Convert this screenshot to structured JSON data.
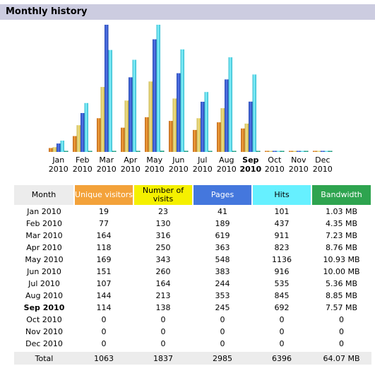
{
  "title": "Monthly history",
  "colors": {
    "visitors": "#f3a23a",
    "visits": "#f5f000",
    "pages": "#4477dd",
    "hits": "#66f0ff",
    "bandwidth": "#2ea44f",
    "month_header": "#ececec",
    "title_bar": "#cccce0"
  },
  "table": {
    "headers": [
      "Month",
      "Unique visitors",
      "Number of visits",
      "Pages",
      "Hits",
      "Bandwidth"
    ],
    "rows": [
      [
        "Jan 2010",
        "19",
        "23",
        "41",
        "101",
        "1.03 MB"
      ],
      [
        "Feb 2010",
        "77",
        "130",
        "189",
        "437",
        "4.35 MB"
      ],
      [
        "Mar 2010",
        "164",
        "316",
        "619",
        "911",
        "7.23 MB"
      ],
      [
        "Apr 2010",
        "118",
        "250",
        "363",
        "823",
        "8.76 MB"
      ],
      [
        "May 2010",
        "169",
        "343",
        "548",
        "1136",
        "10.93 MB"
      ],
      [
        "Jun 2010",
        "151",
        "260",
        "383",
        "916",
        "10.00 MB"
      ],
      [
        "Jul 2010",
        "107",
        "164",
        "244",
        "535",
        "5.36 MB"
      ],
      [
        "Aug 2010",
        "144",
        "213",
        "353",
        "845",
        "8.85 MB"
      ],
      [
        "Sep 2010",
        "114",
        "138",
        "245",
        "692",
        "7.57 MB"
      ],
      [
        "Oct 2010",
        "0",
        "0",
        "0",
        "0",
        "0"
      ],
      [
        "Nov 2010",
        "0",
        "0",
        "0",
        "0",
        "0"
      ],
      [
        "Dec 2010",
        "0",
        "0",
        "0",
        "0",
        "0"
      ]
    ],
    "current_month": "Sep 2010",
    "total": [
      "Total",
      "1063",
      "1837",
      "2985",
      "6396",
      "64.07 MB"
    ]
  },
  "chart_data": {
    "type": "bar",
    "categories": [
      [
        "Jan",
        "2010"
      ],
      [
        "Feb",
        "2010"
      ],
      [
        "Mar",
        "2010"
      ],
      [
        "Apr",
        "2010"
      ],
      [
        "May",
        "2010"
      ],
      [
        "Jun",
        "2010"
      ],
      [
        "Jul",
        "2010"
      ],
      [
        "Aug",
        "2010"
      ],
      [
        "Sep",
        "2010"
      ],
      [
        "Oct",
        "2010"
      ],
      [
        "Nov",
        "2010"
      ],
      [
        "Dec",
        "2010"
      ]
    ],
    "current_index": 8,
    "scale_groups": [
      [
        0,
        1,
        2
      ],
      [
        3,
        4
      ]
    ],
    "series": [
      {
        "key": "visitors",
        "values": [
          19,
          77,
          164,
          118,
          169,
          151,
          107,
          144,
          114,
          0,
          0,
          0
        ],
        "color": "#f3a23a",
        "color2": "#b8601a"
      },
      {
        "key": "visits",
        "values": [
          23,
          130,
          316,
          250,
          343,
          260,
          164,
          213,
          138,
          0,
          0,
          0
        ],
        "color": "#f0e08a",
        "color2": "#c8b44a"
      },
      {
        "key": "pages",
        "values": [
          41,
          189,
          619,
          363,
          548,
          383,
          244,
          353,
          245,
          0,
          0,
          0
        ],
        "color": "#5577ee",
        "color2": "#2244aa"
      },
      {
        "key": "hits",
        "values": [
          101,
          437,
          911,
          823,
          1136,
          916,
          535,
          845,
          692,
          0,
          0,
          0
        ],
        "color": "#88f4ff",
        "color2": "#33b8cc"
      },
      {
        "key": "bandwidth",
        "values": [
          1.03,
          4.35,
          7.23,
          8.76,
          10.93,
          10.0,
          5.36,
          8.85,
          7.57,
          0,
          0,
          0
        ],
        "color": "#30c0a0",
        "color2": "#107860"
      }
    ]
  }
}
